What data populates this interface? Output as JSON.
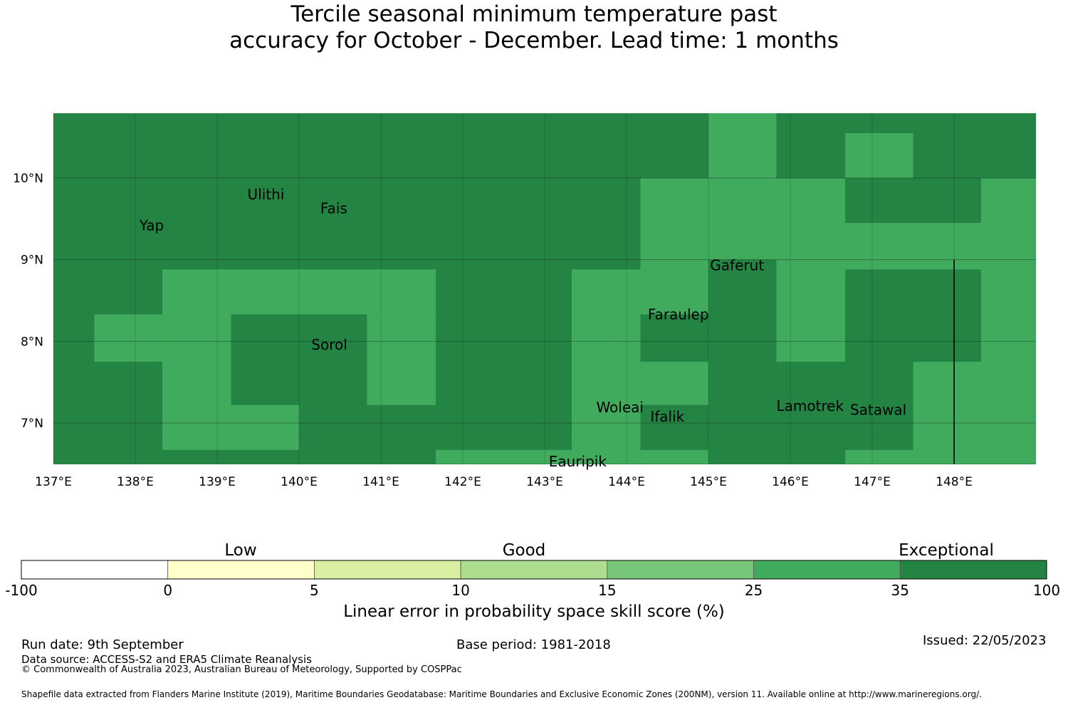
{
  "title": {
    "line1": "Tercile seasonal minimum temperature past",
    "line2": "accuracy for October - December. Lead time: 1 months"
  },
  "map": {
    "lon_range": [
      137,
      149
    ],
    "lat_range": [
      6.5,
      10.8
    ],
    "lon_ticks": [
      137,
      138,
      139,
      140,
      141,
      142,
      143,
      144,
      145,
      146,
      147,
      148
    ],
    "lon_tick_labels": [
      "137°E",
      "138°E",
      "139°E",
      "140°E",
      "141°E",
      "142°E",
      "143°E",
      "144°E",
      "145°E",
      "146°E",
      "147°E",
      "148°E"
    ],
    "lat_ticks": [
      10,
      9,
      8,
      7
    ],
    "lat_tick_labels": [
      "10°N",
      "9°N",
      "8°N",
      "7°N"
    ],
    "colors": {
      "exceptional": "#238443",
      "good_high": "#41ab5d"
    },
    "base_category": "exceptional",
    "regions": [
      {
        "category": "good_high",
        "lon": [
          145.0,
          145.83
        ],
        "lat": [
          10.0,
          10.8
        ]
      },
      {
        "category": "good_high",
        "lon": [
          146.67,
          147.5
        ],
        "lat": [
          10.0,
          10.55
        ]
      },
      {
        "category": "good_high",
        "lon": [
          144.17,
          145.83
        ],
        "lat": [
          9.0,
          10.0
        ]
      },
      {
        "category": "good_high",
        "lon": [
          145.83,
          146.67
        ],
        "lat": [
          9.0,
          10.0
        ]
      },
      {
        "category": "good_high",
        "lon": [
          146.67,
          148.33
        ],
        "lat": [
          9.0,
          9.45
        ]
      },
      {
        "category": "good_high",
        "lon": [
          148.33,
          149.0
        ],
        "lat": [
          9.0,
          10.0
        ]
      },
      {
        "category": "good_high",
        "lon": [
          145.83,
          146.67
        ],
        "lat": [
          7.75,
          9.0
        ]
      },
      {
        "category": "good_high",
        "lon": [
          146.67,
          148.33
        ],
        "lat": [
          8.88,
          9.0
        ]
      },
      {
        "category": "good_high",
        "lon": [
          148.33,
          149.0
        ],
        "lat": [
          7.75,
          9.0
        ]
      },
      {
        "category": "good_high",
        "lon": [
          147.5,
          149.0
        ],
        "lat": [
          6.5,
          7.75
        ]
      },
      {
        "category": "good_high",
        "lon": [
          146.67,
          147.5
        ],
        "lat": [
          6.5,
          6.67
        ]
      },
      {
        "category": "good_high",
        "lon": [
          137.5,
          138.33
        ],
        "lat": [
          7.75,
          8.33
        ]
      },
      {
        "category": "good_high",
        "lon": [
          138.33,
          141.67
        ],
        "lat": [
          8.33,
          8.88
        ]
      },
      {
        "category": "good_high",
        "lon": [
          138.33,
          139.17
        ],
        "lat": [
          6.67,
          8.33
        ]
      },
      {
        "category": "good_high",
        "lon": [
          140.83,
          141.67
        ],
        "lat": [
          7.22,
          8.33
        ]
      },
      {
        "category": "good_high",
        "lon": [
          139.17,
          140.0
        ],
        "lat": [
          6.67,
          7.22
        ]
      },
      {
        "category": "good_high",
        "lon": [
          141.67,
          143.33
        ],
        "lat": [
          6.5,
          6.67
        ]
      },
      {
        "category": "good_high",
        "lon": [
          143.33,
          144.17
        ],
        "lat": [
          6.5,
          8.88
        ]
      },
      {
        "category": "good_high",
        "lon": [
          144.17,
          145.0
        ],
        "lat": [
          7.75,
          9.0
        ]
      },
      {
        "category": "good_high",
        "lon": [
          144.17,
          145.0
        ],
        "lat": [
          7.22,
          7.75
        ]
      },
      {
        "category": "good_high",
        "lon": [
          144.17,
          145.0
        ],
        "lat": [
          6.5,
          6.67
        ]
      },
      {
        "category": "exceptional",
        "lon": [
          144.17,
          145.0
        ],
        "lat": [
          6.67,
          7.22
        ]
      },
      {
        "category": "exceptional",
        "lon": [
          144.17,
          145.0
        ],
        "lat": [
          7.75,
          8.33
        ]
      }
    ],
    "places": [
      {
        "name": "Ulithi",
        "lon": 139.37,
        "lat": 9.8
      },
      {
        "name": "Fais",
        "lon": 140.26,
        "lat": 9.63
      },
      {
        "name": "Yap",
        "lon": 138.05,
        "lat": 9.42
      },
      {
        "name": "Gaferut",
        "lon": 145.02,
        "lat": 8.93
      },
      {
        "name": "Faraulep",
        "lon": 144.26,
        "lat": 8.33
      },
      {
        "name": "Sorol",
        "lon": 140.15,
        "lat": 7.96
      },
      {
        "name": "Woleai",
        "lon": 143.63,
        "lat": 7.19
      },
      {
        "name": "Ifalik",
        "lon": 144.29,
        "lat": 7.08
      },
      {
        "name": "Lamotrek",
        "lon": 145.83,
        "lat": 7.21
      },
      {
        "name": "Satawal",
        "lon": 146.73,
        "lat": 7.16
      },
      {
        "name": "Eauripik",
        "lon": 143.05,
        "lat": 6.53
      }
    ],
    "boundary_line_lon": 148.0,
    "boundary_line_lat": [
      6.5,
      9.0
    ]
  },
  "colorbar": {
    "categories": [
      "Low",
      "Good",
      "Exceptional"
    ],
    "tick_labels": [
      "-100",
      "0",
      "5",
      "10",
      "15",
      "25",
      "35",
      "100"
    ],
    "colors": [
      "#ffffff",
      "#ffffcc",
      "#d9f0a3",
      "#addd8e",
      "#78c679",
      "#41ab5d",
      "#238443"
    ],
    "label": "Linear error in probability space skill score (%)"
  },
  "footer": {
    "run_date": "Run date: 9th September",
    "base_period": "Base period: 1981-2018",
    "issued": "Issued: 22/05/2023",
    "data_source": "Data source: ACCESS-S2 and ERA5 Climate Reanalysis",
    "copyright": "© Commonwealth of Australia 2023, Australian Bureau of Meteorology, Supported by COSPPac",
    "shapefile": "Shapefile data extracted from Flanders Marine Institute (2019), Maritime Boundaries Geodatabase: Maritime Boundaries and Exclusive Economic Zones (200NM), version 11. Available online at http://www.marineregions.org/."
  }
}
